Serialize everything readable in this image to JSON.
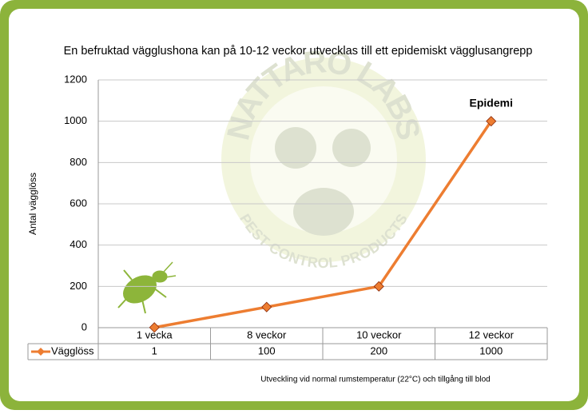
{
  "chart_data": {
    "type": "line",
    "title": "En befruktad vägglushona kan på 10-12 veckor utvecklas till ett epidemiskt vägglusangrepp",
    "y_label": "Antal vägglöss",
    "categories": [
      "1 vecka",
      "8 veckor",
      "10 veckor",
      "12 veckor"
    ],
    "series": [
      {
        "name": "Vägglöss",
        "color": "#ed7d31",
        "values": [
          1,
          100,
          200,
          1000
        ]
      }
    ],
    "ylim": [
      0,
      1200
    ],
    "yticks": [
      0,
      200,
      400,
      600,
      800,
      1000,
      1200
    ],
    "grid": true,
    "annotation": "Epidemi",
    "caption": "Utveckling vid normal rumstemperatur (22°C) och tillgång till blod"
  },
  "watermark": {
    "title": "NATTARO LABS",
    "subtitle": "PEST CONTROL PRODUCTS"
  }
}
